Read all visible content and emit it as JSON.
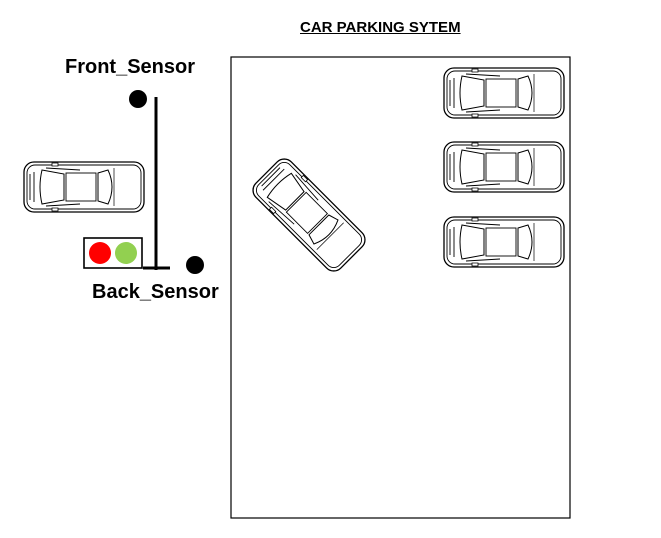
{
  "title": "CAR PARKING SYTEM",
  "sensors": {
    "front_label": "Front_Sensor",
    "back_label": "Back_Sensor"
  },
  "traffic_light": {
    "red_color": "#ff0000",
    "green_color": "#92d050"
  },
  "parking_lot": {
    "parked_cars": 3,
    "entering_cars": 1
  },
  "waiting_cars": 1
}
